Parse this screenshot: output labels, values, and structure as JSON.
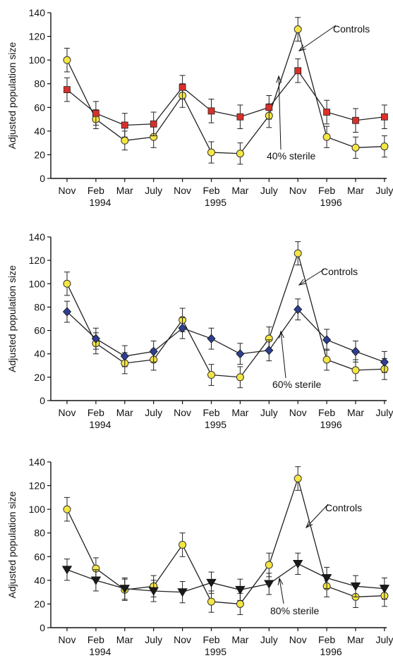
{
  "chart_data": [
    {
      "type": "line",
      "ylabel": "Adjusted population size",
      "ylim": [
        0,
        140
      ],
      "yticks": [
        0,
        20,
        40,
        60,
        80,
        100,
        120,
        140
      ],
      "categories": [
        "Nov",
        "Feb",
        "Mar",
        "July",
        "Nov",
        "Feb",
        "Mar",
        "July",
        "Nov",
        "Feb",
        "Mar",
        "July"
      ],
      "years": [
        "1994",
        "1995",
        "1996"
      ],
      "series": [
        {
          "name": "Controls",
          "marker": "circle",
          "color": "#f5e642",
          "values": [
            100,
            50,
            32,
            35,
            70,
            22,
            21,
            53,
            126,
            35,
            26,
            27
          ],
          "errors": [
            10,
            8,
            8,
            9,
            10,
            9,
            9,
            10,
            10,
            9,
            9,
            9
          ]
        },
        {
          "name": "40% sterile",
          "marker": "square",
          "color": "#d9302a",
          "values": [
            75,
            55,
            45,
            46,
            77,
            57,
            52,
            60,
            91,
            56,
            49,
            52
          ],
          "errors": [
            10,
            10,
            10,
            10,
            10,
            10,
            10,
            10,
            10,
            10,
            10,
            10
          ]
        }
      ]
    },
    {
      "type": "line",
      "ylabel": "Adjusted population size",
      "ylim": [
        0,
        140
      ],
      "yticks": [
        0,
        20,
        40,
        60,
        80,
        100,
        120,
        140
      ],
      "categories": [
        "Nov",
        "Feb",
        "Mar",
        "July",
        "Nov",
        "Feb",
        "Mar",
        "July",
        "Nov",
        "Feb",
        "Mar",
        "July"
      ],
      "years": [
        "1994",
        "1995",
        "1996"
      ],
      "series": [
        {
          "name": "Controls",
          "marker": "circle",
          "color": "#f5e642",
          "values": [
            100,
            49,
            32,
            35,
            69,
            22,
            20,
            53,
            126,
            35,
            26,
            27
          ],
          "errors": [
            10,
            9,
            9,
            9,
            10,
            9,
            9,
            10,
            10,
            9,
            9,
            9
          ]
        },
        {
          "name": "60% sterile",
          "marker": "diamond",
          "color": "#2d3f8f",
          "values": [
            76,
            53,
            38,
            42,
            62,
            53,
            40,
            43,
            78,
            52,
            42,
            33
          ],
          "errors": [
            9,
            9,
            9,
            9,
            9,
            9,
            9,
            9,
            9,
            9,
            9,
            9
          ]
        }
      ]
    },
    {
      "type": "line",
      "ylabel": "Adjusted population size",
      "ylim": [
        0,
        140
      ],
      "yticks": [
        0,
        20,
        40,
        60,
        80,
        100,
        120,
        140
      ],
      "categories": [
        "Nov",
        "Feb",
        "Mar",
        "July",
        "Nov",
        "Feb",
        "Mar",
        "July",
        "Nov",
        "Feb",
        "Mar",
        "July"
      ],
      "years": [
        "1994",
        "1995",
        "1996"
      ],
      "series": [
        {
          "name": "Controls",
          "marker": "circle",
          "color": "#f5e642",
          "values": [
            100,
            50,
            32,
            35,
            70,
            22,
            20,
            53,
            126,
            35,
            26,
            27
          ],
          "errors": [
            10,
            9,
            9,
            9,
            10,
            9,
            9,
            10,
            10,
            9,
            9,
            9
          ]
        },
        {
          "name": "80% sterile",
          "marker": "triangle-down",
          "color": "#1a1a1a",
          "values": [
            49,
            40,
            33,
            31,
            30,
            38,
            32,
            37,
            54,
            42,
            35,
            33
          ],
          "errors": [
            9,
            9,
            9,
            9,
            9,
            9,
            9,
            9,
            9,
            9,
            9,
            9
          ]
        }
      ]
    }
  ]
}
